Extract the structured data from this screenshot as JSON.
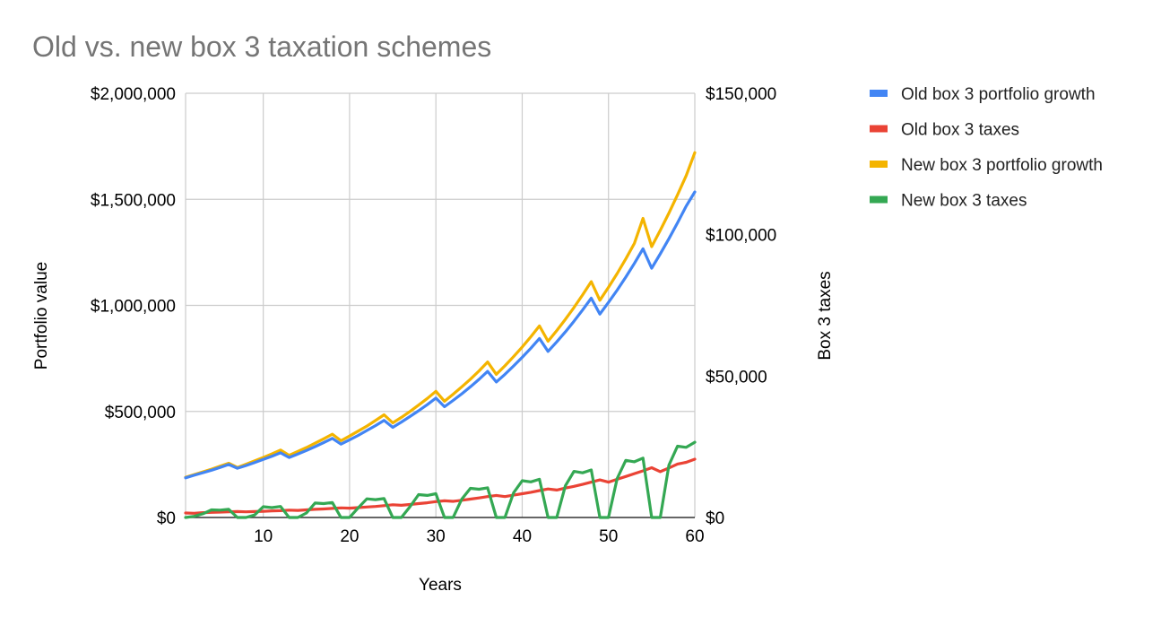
{
  "chart_data": {
    "type": "line",
    "title": "Old vs. new box 3 taxation schemes",
    "xlabel": "Years",
    "ylabel_left": "Portfolio value",
    "ylabel_right": "Box 3 taxes",
    "xlim": [
      1,
      60
    ],
    "ylim_left": [
      0,
      2000000
    ],
    "ylim_right": [
      0,
      150000
    ],
    "x_ticks": [
      10,
      20,
      30,
      40,
      50,
      60
    ],
    "x_tick_labels": [
      "10",
      "20",
      "30",
      "40",
      "50",
      "60"
    ],
    "y_left_ticks": [
      0,
      500000,
      1000000,
      1500000,
      2000000
    ],
    "y_left_tick_labels": [
      "$0",
      "$500,000",
      "$1,000,000",
      "$1,500,000",
      "$2,000,000"
    ],
    "y_right_ticks": [
      0,
      50000,
      100000,
      150000
    ],
    "y_right_tick_labels": [
      "$0",
      "$50,000",
      "$100,000",
      "$150,000"
    ],
    "grid": true,
    "legend_position": "right",
    "x": [
      1,
      2,
      3,
      4,
      5,
      6,
      7,
      8,
      9,
      10,
      11,
      12,
      13,
      14,
      15,
      16,
      17,
      18,
      19,
      20,
      21,
      22,
      23,
      24,
      25,
      26,
      27,
      28,
      29,
      30,
      31,
      32,
      33,
      34,
      35,
      36,
      37,
      38,
      39,
      40,
      41,
      42,
      43,
      44,
      45,
      46,
      47,
      48,
      49,
      50,
      51,
      52,
      53,
      54,
      55,
      56,
      57,
      58,
      59,
      60
    ],
    "series": [
      {
        "name": "New box 3 portfolio growth",
        "axis": "left",
        "color": "#f4b400",
        "values": [
          190000,
          202000,
          215000,
          228000,
          242000,
          256000,
          236000,
          251000,
          267000,
          283000,
          300000,
          318000,
          293000,
          311000,
          330000,
          350000,
          371000,
          393000,
          362000,
          384000,
          407000,
          431000,
          457000,
          484000,
          446000,
          472000,
          500000,
          530000,
          561000,
          595000,
          548000,
          581000,
          616000,
          652000,
          691000,
          733000,
          675000,
          715000,
          758000,
          804000,
          852000,
          903000,
          831000,
          881000,
          934000,
          990000,
          1049000,
          1112000,
          1024000,
          1085000,
          1150000,
          1219000,
          1292000,
          1410000,
          1277000,
          1354000,
          1435000,
          1521000,
          1612000,
          1720000
        ]
      },
      {
        "name": "Old box 3 portfolio growth",
        "axis": "left",
        "color": "#4285f4",
        "values": [
          187000,
          199000,
          211000,
          223000,
          236000,
          250000,
          232000,
          245000,
          259000,
          274000,
          289000,
          305000,
          283000,
          299000,
          316000,
          334000,
          353000,
          373000,
          346000,
          366000,
          387000,
          410000,
          433000,
          458000,
          425000,
          450000,
          476000,
          503000,
          532000,
          563000,
          522000,
          552000,
          583000,
          616000,
          651000,
          689000,
          639000,
          675000,
          714000,
          755000,
          798000,
          844000,
          783000,
          828000,
          875000,
          925000,
          978000,
          1034000,
          959000,
          1014000,
          1072000,
          1133000,
          1198000,
          1267000,
          1175000,
          1243000,
          1314000,
          1389000,
          1468000,
          1535000
        ]
      },
      {
        "name": "Old box 3 taxes",
        "axis": "right",
        "color": "#ea4335",
        "values": [
          1600,
          1500,
          1700,
          1800,
          1900,
          2000,
          2100,
          2000,
          2100,
          2200,
          2300,
          2400,
          2600,
          2500,
          2700,
          2900,
          3000,
          3200,
          3400,
          3300,
          3500,
          3700,
          3900,
          4200,
          4500,
          4300,
          4600,
          4900,
          5200,
          5600,
          5900,
          5700,
          6100,
          6500,
          6900,
          7400,
          7800,
          7400,
          7900,
          8400,
          8900,
          9500,
          10100,
          9700,
          10400,
          11000,
          11700,
          12500,
          13300,
          12500,
          13500,
          14500,
          15500,
          16500,
          17600,
          16200,
          17500,
          18900,
          19500,
          20600
        ]
      },
      {
        "name": "New box 3 taxes",
        "axis": "right",
        "color": "#34a853",
        "values": [
          0,
          400,
          1300,
          2700,
          2600,
          2900,
          0,
          0,
          900,
          3800,
          3500,
          3900,
          0,
          0,
          1600,
          5100,
          4900,
          5300,
          0,
          0,
          3400,
          6600,
          6300,
          6700,
          0,
          0,
          3800,
          8100,
          7800,
          8400,
          0,
          0,
          6500,
          10300,
          10000,
          10500,
          0,
          0,
          8700,
          13000,
          12600,
          13500,
          0,
          0,
          11200,
          16300,
          15800,
          16800,
          0,
          0,
          13800,
          20200,
          19700,
          21000,
          0,
          0,
          18500,
          25200,
          24800,
          26600
        ]
      }
    ],
    "legend_order": [
      "Old box 3 portfolio growth",
      "Old box 3 taxes",
      "New box 3 portfolio growth",
      "New box 3 taxes"
    ]
  }
}
